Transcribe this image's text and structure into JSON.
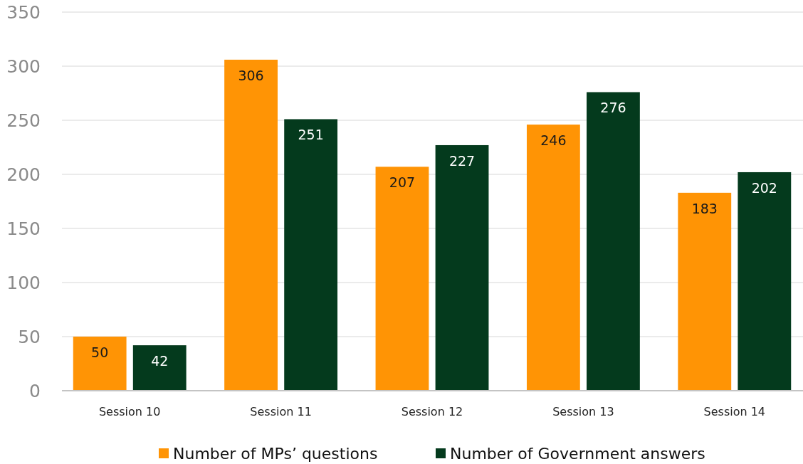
{
  "chart_data": {
    "type": "bar",
    "categories": [
      "Session 10",
      "Session 11",
      "Session 12",
      "Session 13",
      "Session 14"
    ],
    "series": [
      {
        "name": "Number of MPs’ questions",
        "color": "#ff9405",
        "values": [
          50,
          306,
          207,
          246,
          183
        ]
      },
      {
        "name": "Number of Government answers",
        "color": "#043a1d",
        "values": [
          42,
          251,
          227,
          276,
          202
        ]
      }
    ],
    "ylim": [
      0,
      350
    ],
    "yticks": [
      0,
      50,
      100,
      150,
      200,
      250,
      300,
      350
    ],
    "grid": "y",
    "legend": "bottom",
    "data_labels": true
  }
}
